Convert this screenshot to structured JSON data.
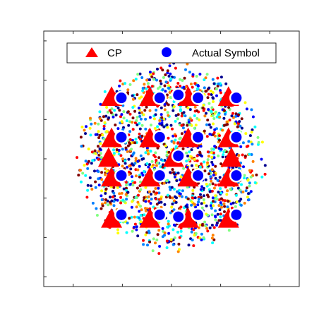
{
  "chart_data": {
    "type": "scatter",
    "title": "",
    "xlabel": "",
    "ylabel": "",
    "xlim": [
      -1.3,
      1.3
    ],
    "ylim": [
      -1.3,
      1.3
    ],
    "grid": false,
    "tick_labels_visible": false,
    "legend": {
      "placement": "top",
      "entries": [
        {
          "label": "CP",
          "marker": "triangle",
          "color": "#ff0000"
        },
        {
          "label": "Actual Symbol",
          "marker": "circle",
          "color": "#0000ff"
        }
      ]
    },
    "scatter_cloud": {
      "description_color_map": [
        "#00008f",
        "#0000ff",
        "#0080ff",
        "#00ffff",
        "#80ff80",
        "#ffff00",
        "#ff8000",
        "#ff0000",
        "#800000"
      ],
      "radius_data_units": 0.9,
      "approx_point_count": 1600
    },
    "series": [
      {
        "name": "CP",
        "marker": "triangle",
        "color": "#ff0000",
        "points": [
          [
            -0.61,
            0.63
          ],
          [
            -0.22,
            0.63
          ],
          [
            0.17,
            0.63
          ],
          [
            0.58,
            0.63
          ],
          [
            -0.61,
            0.21
          ],
          [
            -0.22,
            0.21
          ],
          [
            0.17,
            0.21
          ],
          [
            0.58,
            0.21
          ],
          [
            -0.64,
            0.01
          ],
          [
            0.02,
            0.01
          ],
          [
            0.61,
            0.01
          ],
          [
            -0.61,
            -0.19
          ],
          [
            -0.22,
            -0.19
          ],
          [
            0.17,
            -0.19
          ],
          [
            0.58,
            -0.19
          ],
          [
            -0.61,
            -0.61
          ],
          [
            -0.22,
            -0.61
          ],
          [
            0.17,
            -0.61
          ],
          [
            0.58,
            -0.61
          ]
        ]
      },
      {
        "name": "Actual Symbol",
        "marker": "circle",
        "color": "#0000ff",
        "points": [
          [
            -0.51,
            0.62
          ],
          [
            -0.12,
            0.62
          ],
          [
            0.07,
            0.65
          ],
          [
            0.27,
            0.62
          ],
          [
            0.66,
            0.62
          ],
          [
            -0.51,
            0.22
          ],
          [
            -0.12,
            0.22
          ],
          [
            0.27,
            0.22
          ],
          [
            0.66,
            0.22
          ],
          [
            0.07,
            0.03
          ],
          [
            -0.51,
            -0.17
          ],
          [
            -0.12,
            -0.17
          ],
          [
            0.27,
            -0.17
          ],
          [
            0.66,
            -0.17
          ],
          [
            -0.51,
            -0.57
          ],
          [
            -0.12,
            -0.57
          ],
          [
            0.07,
            -0.59
          ],
          [
            0.27,
            -0.57
          ],
          [
            0.66,
            -0.57
          ]
        ]
      }
    ]
  }
}
